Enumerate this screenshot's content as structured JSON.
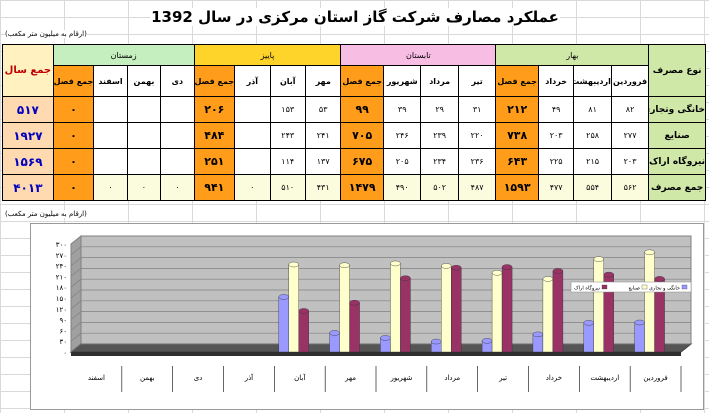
{
  "title": "عملکرد مصارف شرکت گاز استان مرکزی در سال 1392",
  "unit_top": "(ارقام به میلیون متر مکعب)",
  "unit_bottom": "(ارقام به میلیون متر مکعب)",
  "table": {
    "type_header": "نوع مصرف",
    "year_header": "جمع سال",
    "seasons": [
      "بهار",
      "تابستان",
      "پاییز",
      "زمستان"
    ],
    "months": [
      "فروردین",
      "اردیبهشت",
      "خرداد",
      "تیر",
      "مرداد",
      "شهریور",
      "مهر",
      "آبان",
      "آذر",
      "دی",
      "بهمن",
      "اسفند"
    ],
    "season_total_label": "جمع فصل",
    "rows": [
      {
        "label": "خانگی وتجاری",
        "cells": [
          [
            "۸۲",
            "۸۱",
            "۴۹",
            "۲۱۲"
          ],
          [
            "۳۱",
            "۲۹",
            "۳۹",
            "۹۹"
          ],
          [
            "۵۳",
            "۱۵۳",
            "",
            "۲۰۶"
          ],
          [
            "",
            "",
            "",
            "۰"
          ]
        ],
        "year": "۵۱۷"
      },
      {
        "label": "صنایع",
        "cells": [
          [
            "۲۷۷",
            "۲۵۸",
            "۲۰۳",
            "۷۳۸"
          ],
          [
            "۲۲۰",
            "۲۳۹",
            "۲۴۶",
            "۷۰۵"
          ],
          [
            "۲۴۱",
            "۲۴۳",
            "",
            "۴۸۴"
          ],
          [
            "",
            "",
            "",
            "۰"
          ]
        ],
        "year": "۱۹۲۷"
      },
      {
        "label": "نیروگاه اراک",
        "cells": [
          [
            "۲۰۳",
            "۲۱۵",
            "۲۲۵",
            "۶۴۳"
          ],
          [
            "۲۳۶",
            "۲۳۴",
            "۲۰۵",
            "۶۷۵"
          ],
          [
            "۱۳۷",
            "۱۱۴",
            "",
            "۲۵۱"
          ],
          [
            "",
            "",
            "",
            "۰"
          ]
        ],
        "year": "۱۵۶۹"
      },
      {
        "label": "جمع مصرف",
        "cells": [
          [
            "۵۶۲",
            "۵۵۴",
            "۴۷۷",
            "۱۵۹۳"
          ],
          [
            "۴۸۷",
            "۵۰۲",
            "۴۹۰",
            "۱۴۷۹"
          ],
          [
            "۴۳۱",
            "۵۱۰",
            "۰",
            "۹۴۱"
          ],
          [
            "۰",
            "۰",
            "۰",
            "۰"
          ]
        ],
        "year": "۴۰۱۳"
      }
    ]
  },
  "colors": {
    "spring": "#cfe8a8",
    "summer": "#f7bde2",
    "autumn": "#ffd42a",
    "winter": "#c6efc0",
    "season_total": "#ff9d1a",
    "year_total": "#ffd9b0"
  },
  "chart_data": {
    "type": "bar",
    "categories": [
      "فروردین",
      "اردیبهشت",
      "خرداد",
      "تیر",
      "مرداد",
      "شهریور",
      "مهر",
      "آبان",
      "آذر",
      "دی",
      "بهمن",
      "اسفند"
    ],
    "series": [
      {
        "name": "خانگی و تجاری",
        "color": "#9999ff",
        "values": [
          82,
          81,
          49,
          31,
          29,
          39,
          53,
          153,
          null,
          null,
          null,
          null
        ]
      },
      {
        "name": "صنایع",
        "color": "#ffffcc",
        "values": [
          277,
          258,
          203,
          220,
          239,
          246,
          241,
          243,
          null,
          null,
          null,
          null
        ]
      },
      {
        "name": "نیروگاه اراک",
        "color": "#993366",
        "values": [
          203,
          215,
          225,
          236,
          234,
          205,
          137,
          114,
          null,
          null,
          null,
          null
        ]
      }
    ],
    "yticks": [
      "۰",
      "۳۰",
      "۶۰",
      "۹۰",
      "۱۲۰",
      "۱۵۰",
      "۱۸۰",
      "۲۱۰",
      "۲۴۰",
      "۲۷۰",
      "۳۰۰"
    ],
    "ylim": [
      0,
      300
    ]
  }
}
